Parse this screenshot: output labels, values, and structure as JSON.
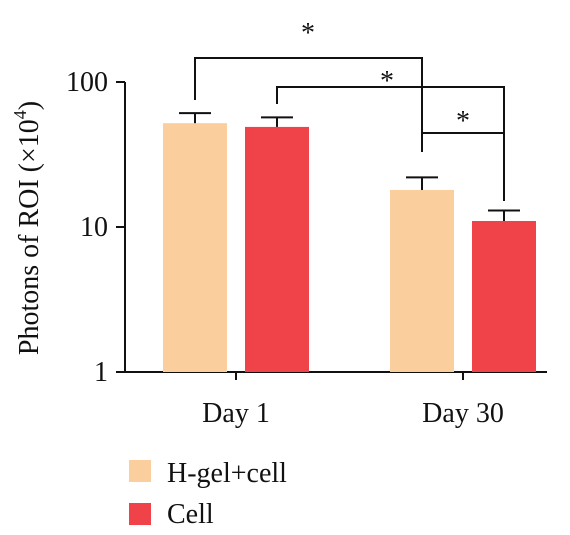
{
  "chart_data": {
    "type": "bar",
    "yscale": "log",
    "ylim": [
      1,
      100
    ],
    "yticks": [
      "1",
      "10",
      "100"
    ],
    "ylabel_main": "Photons of ROI (×10",
    "ylabel_exp": "4",
    "ylabel_close": ")",
    "categories": [
      "Day 1",
      "Day 30"
    ],
    "series": [
      {
        "name": "H-gel+cell",
        "color": "#FBCE9E",
        "values": [
          52,
          18
        ],
        "errors": [
          61,
          22
        ]
      },
      {
        "name": "Cell",
        "color": "#EF4349",
        "values": [
          49,
          11
        ],
        "errors": [
          57,
          13
        ]
      }
    ],
    "significance": [
      {
        "label": "*",
        "pair": "H-gel+cell Day 1 vs H-gel+cell Day 30"
      },
      {
        "label": "*",
        "pair": "Cell Day 1 vs Cell Day 30"
      },
      {
        "label": "*",
        "pair": "H-gel+cell Day 30 vs Cell Day 30"
      }
    ],
    "grid": false,
    "legend_position": "bottom-left"
  }
}
